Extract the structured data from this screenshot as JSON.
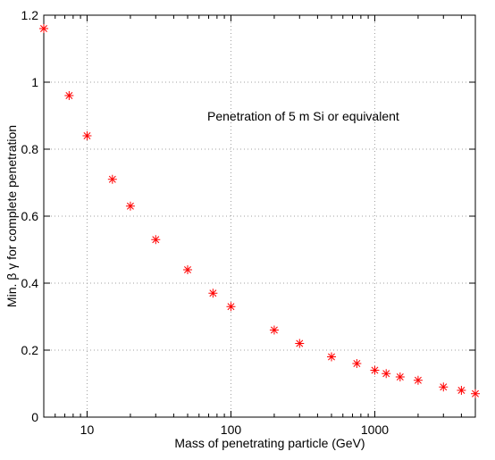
{
  "chart_data": {
    "type": "scatter",
    "annotation": "Penetration of 5 m Si or equivalent",
    "xlabel": "Mass of penetrating particle  (GeV)",
    "ylabel": "Min. β γ for complete penetration",
    "x_scale": "log",
    "xlim": [
      5,
      5000
    ],
    "ylim": [
      0,
      1.2
    ],
    "x_ticks": [
      {
        "value": 10,
        "label": "10"
      },
      {
        "value": 100,
        "label": "100"
      },
      {
        "value": 1000,
        "label": "1000"
      }
    ],
    "y_ticks": [
      {
        "value": 0,
        "label": "0"
      },
      {
        "value": 0.2,
        "label": "0.2"
      },
      {
        "value": 0.4,
        "label": "0.4"
      },
      {
        "value": 0.6,
        "label": "0.6"
      },
      {
        "value": 0.8,
        "label": "0.8"
      },
      {
        "value": 1.0,
        "label": "1"
      },
      {
        "value": 1.2,
        "label": "1.2"
      }
    ],
    "grid": true,
    "marker": "asterisk",
    "marker_color": "#ff0000",
    "series": [
      {
        "points": [
          {
            "x": 5,
            "y": 1.16
          },
          {
            "x": 7.5,
            "y": 0.96
          },
          {
            "x": 10,
            "y": 0.84
          },
          {
            "x": 15,
            "y": 0.71
          },
          {
            "x": 20,
            "y": 0.63
          },
          {
            "x": 30,
            "y": 0.53
          },
          {
            "x": 50,
            "y": 0.44
          },
          {
            "x": 75,
            "y": 0.37
          },
          {
            "x": 100,
            "y": 0.33
          },
          {
            "x": 200,
            "y": 0.26
          },
          {
            "x": 300,
            "y": 0.22
          },
          {
            "x": 500,
            "y": 0.18
          },
          {
            "x": 750,
            "y": 0.16
          },
          {
            "x": 1000,
            "y": 0.14
          },
          {
            "x": 1200,
            "y": 0.13
          },
          {
            "x": 1500,
            "y": 0.12
          },
          {
            "x": 2000,
            "y": 0.11
          },
          {
            "x": 3000,
            "y": 0.09
          },
          {
            "x": 4000,
            "y": 0.08
          },
          {
            "x": 5000,
            "y": 0.07
          }
        ]
      }
    ]
  }
}
